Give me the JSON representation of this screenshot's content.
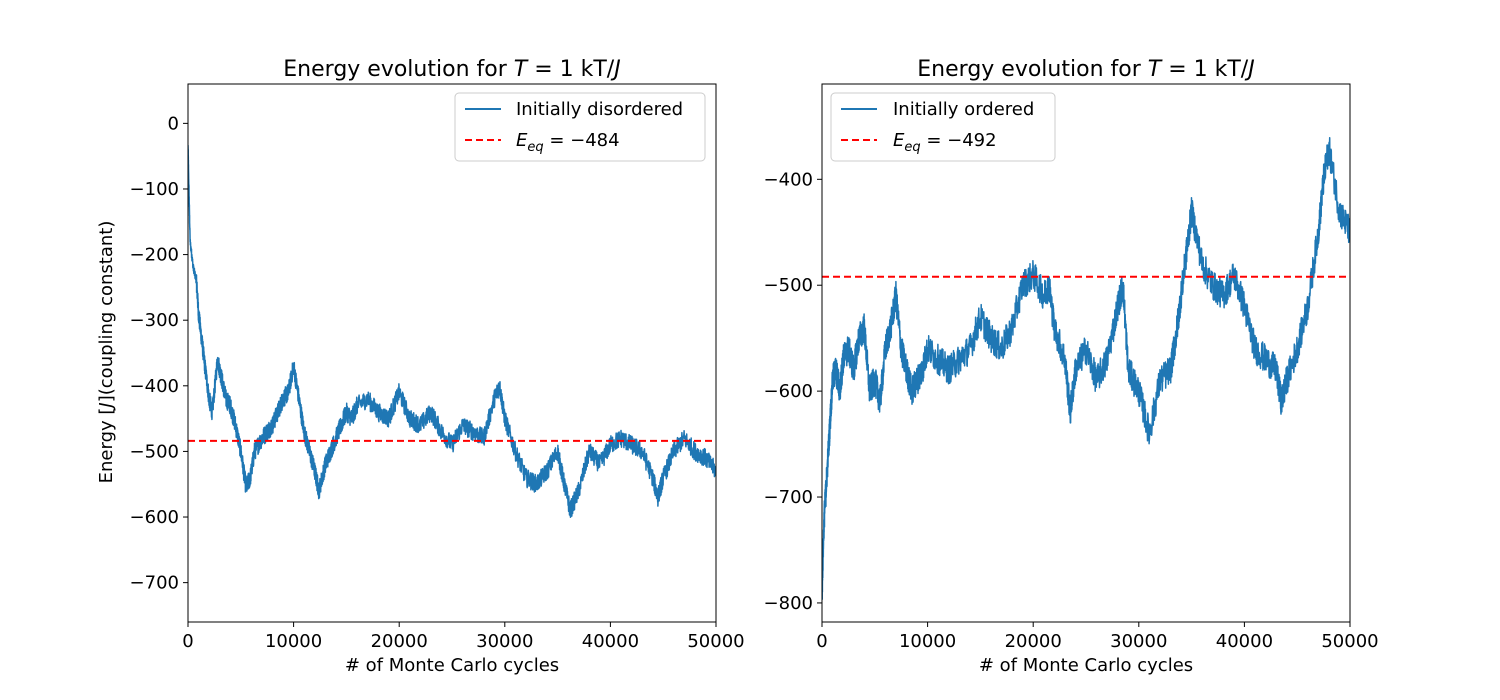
{
  "chart_data": [
    {
      "type": "line",
      "title": "Energy evolution for T = 1 kT/J",
      "title_parts": {
        "prefix": "Energy evolution for ",
        "var": "T",
        "mid": " = 1 kT/",
        "var2": "J"
      },
      "xlabel": "# of Monte Carlo cycles",
      "ylabel": "Energy [J](coupling constant)",
      "ylabel_parts": {
        "pre": "Energy [",
        "var": "J",
        "post": "](coupling constant)"
      },
      "xlim": [
        0,
        50000
      ],
      "ylim": [
        -760,
        60
      ],
      "xticks": [
        0,
        10000,
        20000,
        30000,
        40000,
        50000
      ],
      "yticks": [
        0,
        -100,
        -200,
        -300,
        -400,
        -500,
        -600,
        -700
      ],
      "ytick_labels": [
        "0",
        "−100",
        "−200",
        "−300",
        "−400",
        "−500",
        "−600",
        "−700"
      ],
      "grid": false,
      "legend_position": "upper right",
      "series": [
        {
          "name": "Initially disordered",
          "style": "solid",
          "color": "#1f77b4",
          "x": [
            0,
            200,
            500,
            800,
            1000,
            1300,
            1600,
            2000,
            2300,
            2800,
            3200,
            3600,
            4000,
            4500,
            5000,
            5500,
            5900,
            6300,
            7000,
            7500,
            8000,
            8500,
            9000,
            9500,
            10000,
            10500,
            11000,
            11500,
            12000,
            12400,
            13000,
            13500,
            14000,
            14500,
            15000,
            15500,
            16000,
            17000,
            18000,
            19000,
            20000,
            21000,
            22000,
            23000,
            24000,
            25000,
            26000,
            27000,
            28000,
            29000,
            29500,
            30000,
            31000,
            32000,
            33000,
            34000,
            35000,
            35500,
            36200,
            37000,
            38000,
            39000,
            40000,
            41000,
            42000,
            43000,
            44000,
            44500,
            45000,
            46000,
            47000,
            48000,
            49000,
            50000
          ],
          "y": [
            -35,
            -180,
            -220,
            -240,
            -290,
            -330,
            -370,
            -420,
            -440,
            -360,
            -390,
            -420,
            -430,
            -460,
            -500,
            -555,
            -540,
            -500,
            -480,
            -470,
            -460,
            -440,
            -420,
            -410,
            -370,
            -420,
            -470,
            -500,
            -530,
            -560,
            -520,
            -500,
            -480,
            -460,
            -440,
            -450,
            -430,
            -420,
            -440,
            -450,
            -410,
            -450,
            -460,
            -440,
            -470,
            -490,
            -460,
            -470,
            -480,
            -420,
            -400,
            -450,
            -500,
            -540,
            -550,
            -530,
            -500,
            -540,
            -590,
            -560,
            -500,
            -520,
            -490,
            -480,
            -490,
            -500,
            -540,
            -570,
            -540,
            -500,
            -480,
            -500,
            -510,
            -530
          ]
        },
        {
          "name": "E_eq = −484",
          "legend_parts": {
            "var": "E",
            "sub": "eq",
            "rest": " = −484"
          },
          "style": "dashed",
          "color": "#ff0000",
          "y_const": -484
        }
      ]
    },
    {
      "type": "line",
      "title": "Energy evolution for T = 1 kT/J",
      "title_parts": {
        "prefix": "Energy evolution for ",
        "var": "T",
        "mid": " = 1 kT/",
        "var2": "J"
      },
      "xlabel": "# of Monte Carlo cycles",
      "ylabel": "",
      "xlim": [
        0,
        50000
      ],
      "ylim": [
        -818,
        -310
      ],
      "xticks": [
        0,
        10000,
        20000,
        30000,
        40000,
        50000
      ],
      "yticks": [
        -400,
        -500,
        -600,
        -700,
        -800
      ],
      "ytick_labels": [
        "−400",
        "−500",
        "−600",
        "−700",
        "−800"
      ],
      "grid": false,
      "legend_position": "upper left",
      "series": [
        {
          "name": "Initially ordered",
          "style": "solid",
          "color": "#1f77b4",
          "x": [
            0,
            200,
            400,
            700,
            1000,
            1300,
            1700,
            2000,
            2500,
            3000,
            3500,
            4000,
            4500,
            5000,
            5500,
            6000,
            6500,
            7000,
            7500,
            8000,
            8500,
            9000,
            9500,
            10000,
            11000,
            12000,
            13000,
            14000,
            15000,
            16000,
            17000,
            18000,
            19000,
            20000,
            21000,
            21500,
            22000,
            23000,
            23500,
            24000,
            25000,
            26000,
            27000,
            28000,
            28500,
            29000,
            30000,
            31000,
            32000,
            33000,
            33500,
            34000,
            34500,
            35000,
            36000,
            37000,
            38000,
            39000,
            40000,
            41000,
            42000,
            43000,
            43500,
            44000,
            45000,
            46000,
            47000,
            47500,
            48000,
            49000,
            50000
          ],
          "y": [
            -790,
            -720,
            -690,
            -640,
            -590,
            -580,
            -600,
            -570,
            -560,
            -580,
            -550,
            -540,
            -600,
            -590,
            -610,
            -560,
            -540,
            -510,
            -560,
            -580,
            -600,
            -590,
            -580,
            -560,
            -570,
            -580,
            -570,
            -560,
            -530,
            -550,
            -560,
            -540,
            -500,
            -490,
            -510,
            -500,
            -540,
            -570,
            -620,
            -580,
            -560,
            -590,
            -570,
            -520,
            -500,
            -580,
            -600,
            -640,
            -590,
            -580,
            -550,
            -510,
            -470,
            -430,
            -480,
            -500,
            -510,
            -490,
            -520,
            -560,
            -570,
            -580,
            -610,
            -590,
            -560,
            -520,
            -450,
            -400,
            -370,
            -430,
            -450
          ]
        },
        {
          "name": "E_eq = −492",
          "legend_parts": {
            "var": "E",
            "sub": "eq",
            "rest": " = −492"
          },
          "style": "dashed",
          "color": "#ff0000",
          "y_const": -492
        }
      ]
    }
  ]
}
